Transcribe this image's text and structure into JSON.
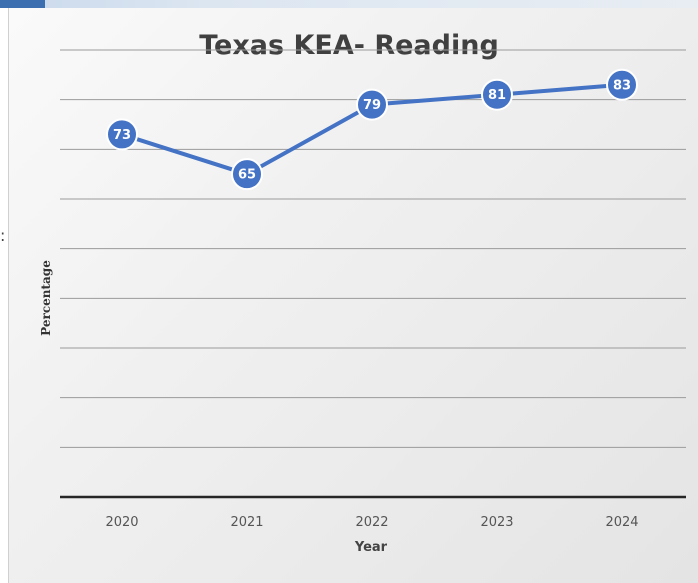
{
  "chart_data": {
    "type": "line",
    "title": "Texas KEA- Reading",
    "xlabel": "Year",
    "ylabel": "Percentage",
    "categories": [
      "2020",
      "2021",
      "2022",
      "2023",
      "2024"
    ],
    "series": [
      {
        "values": [
          73,
          65,
          79,
          81,
          83
        ]
      }
    ],
    "data_labels": [
      "73",
      "65",
      "79",
      "81",
      "83"
    ],
    "ylim": [
      0,
      90
    ],
    "grid": "horizontal",
    "line_color": "#4472C4"
  },
  "edge_text": ":"
}
